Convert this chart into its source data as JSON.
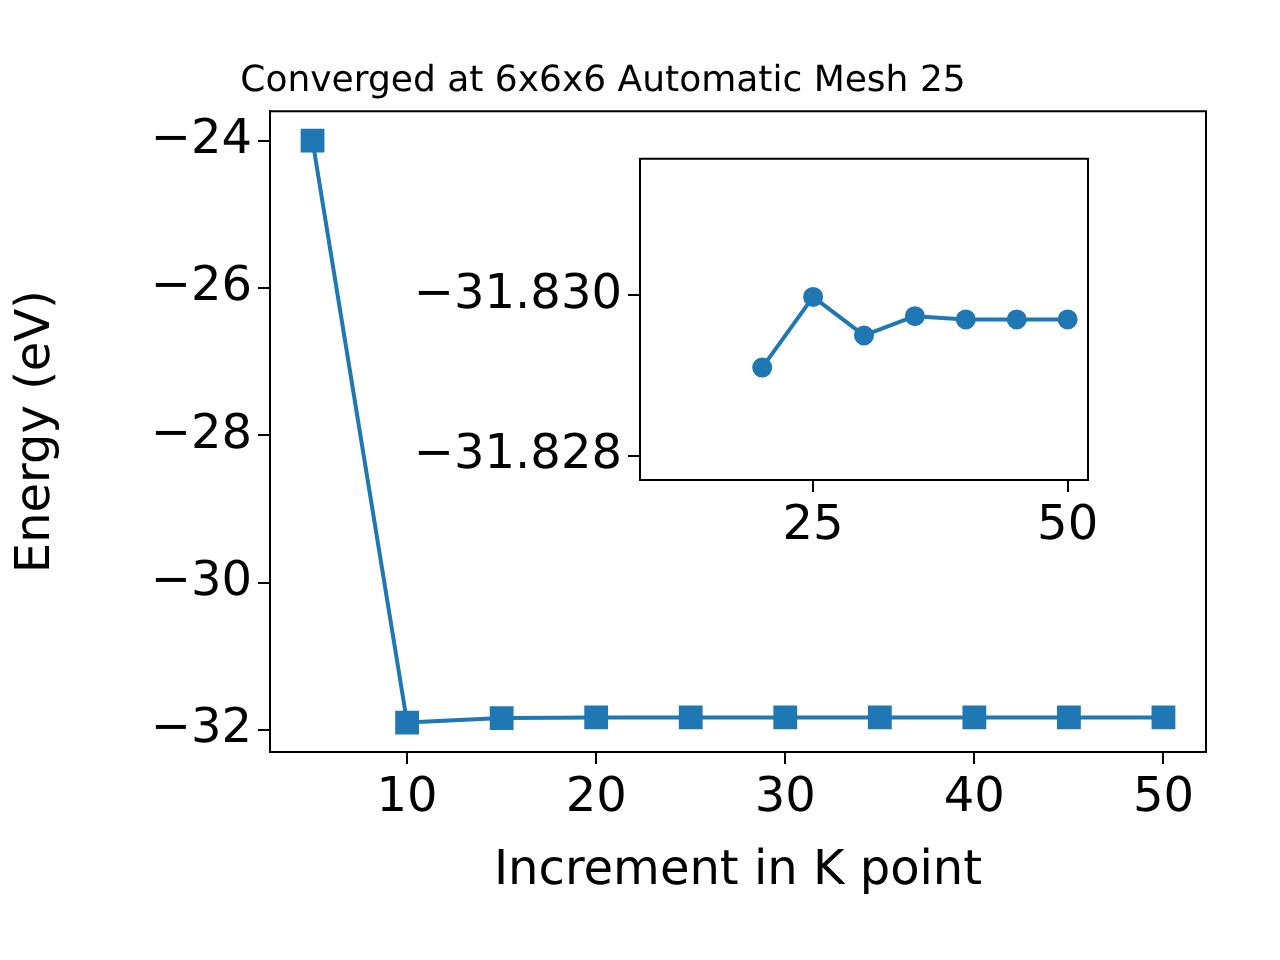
{
  "chart_data": [
    {
      "type": "line",
      "title": "Converged at 6x6x6 Automatic Mesh 25",
      "xlabel": "Increment in K point",
      "ylabel": "Energy (eV)",
      "x": [
        5,
        10,
        15,
        20,
        25,
        30,
        35,
        40,
        45,
        50
      ],
      "series": [
        {
          "color": "#1f77b4",
          "values": [
            -24,
            -31.9,
            -31.84,
            -31.83,
            -31.83,
            -31.83,
            -31.83,
            -31.83,
            -31.83,
            -31.83
          ]
        }
      ],
      "xlim": [
        2.75,
        52.25
      ],
      "xticks": [
        10,
        20,
        30,
        40,
        50
      ],
      "ylim": [
        -32.3,
        -23.6
      ],
      "yticks": [
        -32,
        -30,
        -28,
        -26,
        -24
      ],
      "marker": "square",
      "grid": false,
      "legend": false
    },
    {
      "type": "line",
      "x": [
        20,
        25,
        30,
        35,
        40,
        45,
        50
      ],
      "series": [
        {
          "color": "#1f77b4",
          "values": [
            -31.8291,
            -31.82998,
            -31.8295,
            -31.82974,
            -31.8297,
            -31.8297,
            -31.8297
          ]
        }
      ],
      "xlim": [
        8,
        52
      ],
      "xticks": [
        25,
        50
      ],
      "ylim": [
        -31.8277,
        -31.8317
      ],
      "yticks": [
        {
          "value": -31.83,
          "label": "−31.830"
        },
        {
          "value": -31.828,
          "label": "−31.828"
        }
      ],
      "marker": "circle",
      "grid": false,
      "legend": false
    }
  ]
}
